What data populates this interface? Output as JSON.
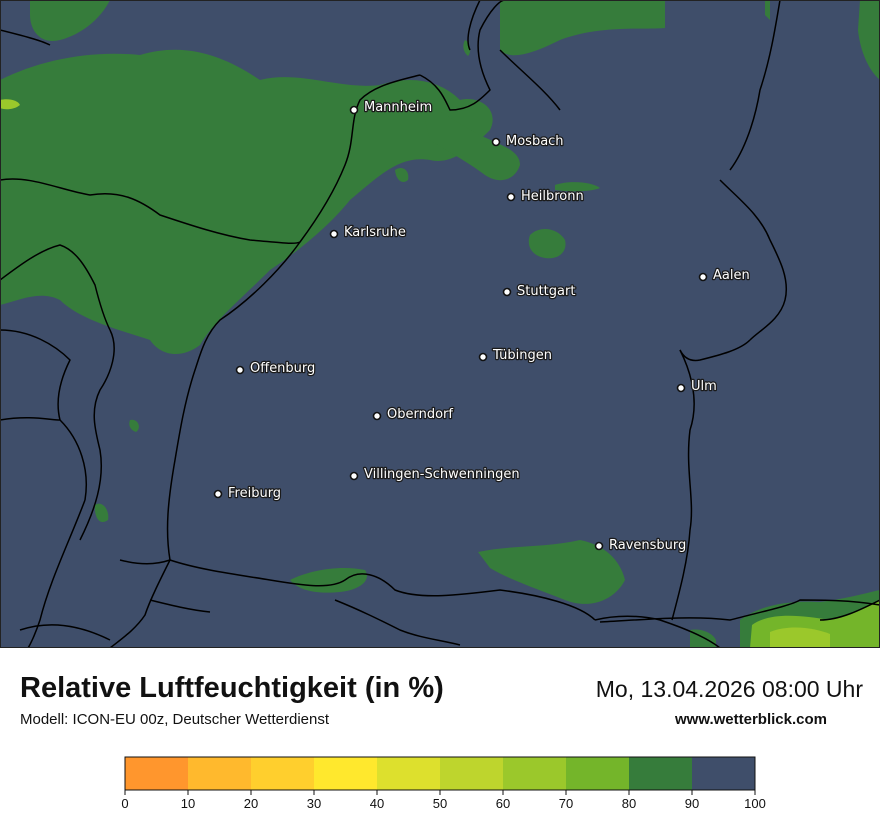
{
  "header": {
    "title": "Relative Luftfeuchtigkeit (in %)",
    "subtitle": "Modell: ICON-EU 00z, Deutscher Wetterdienst",
    "datetime": "Mo, 13.04.2026 08:00 Uhr",
    "website": "www.wetterblick.com"
  },
  "cities": [
    {
      "name": "Mannheim"
    },
    {
      "name": "Mosbach"
    },
    {
      "name": "Heilbronn"
    },
    {
      "name": "Karlsruhe"
    },
    {
      "name": "Aalen"
    },
    {
      "name": "Stuttgart"
    },
    {
      "name": "Tübingen"
    },
    {
      "name": "Offenburg"
    },
    {
      "name": "Ulm"
    },
    {
      "name": "Oberndorf"
    },
    {
      "name": "Villingen-Schwenningen"
    },
    {
      "name": "Freiburg"
    },
    {
      "name": "Ravensburg"
    }
  ],
  "legend": {
    "colors": [
      "#ff962d",
      "#ffb92d",
      "#ffcf2d",
      "#ffe82d",
      "#dde02d",
      "#bed52d",
      "#9bc82b",
      "#74b52a",
      "#367c3b",
      "#3f4e6a"
    ],
    "ticks": [
      "0",
      "10",
      "20",
      "30",
      "40",
      "50",
      "60",
      "70",
      "80",
      "90",
      "100"
    ]
  },
  "palette": {
    "humid_90_100": "#3f4e6a",
    "humid_80_90": "#367c3b",
    "humid_70_80": "#74b52a",
    "humid_60_70": "#9bc82b"
  }
}
